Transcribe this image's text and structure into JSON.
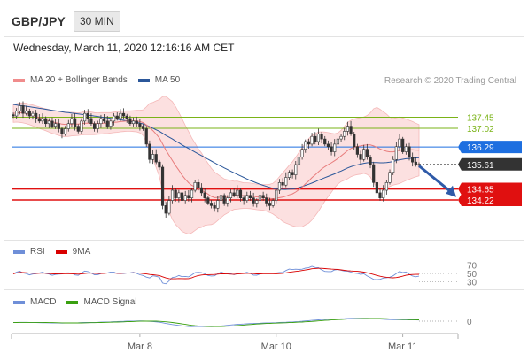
{
  "header": {
    "symbol": "GBP/JPY",
    "timeframe": "30 MIN"
  },
  "datetime": "Wednesday, March 11, 2020 12:16:16 AM CET",
  "legend": [
    {
      "label": "MA 20 + Bollinger Bands",
      "color": "#f08c8c"
    },
    {
      "label": "MA 50",
      "color": "#2b579a"
    }
  ],
  "credit": "Research © 2020 Trading Central",
  "rsi_legend": [
    {
      "label": "RSI",
      "color": "#6f8fd8"
    },
    {
      "label": "9MA",
      "color": "#d90000"
    }
  ],
  "macd_legend": [
    {
      "label": "MACD",
      "color": "#6f8fd8"
    },
    {
      "label": "MACD Signal",
      "color": "#3aa010"
    }
  ],
  "chart_data": {
    "type": "candlestick",
    "price_ylim": [
      132.7,
      138.4
    ],
    "levels": [
      {
        "value": 137.45,
        "label": "137.45",
        "kind": "resistance",
        "color": "#7ab317"
      },
      {
        "value": 137.02,
        "label": "137.02",
        "kind": "resistance",
        "color": "#7ab317"
      },
      {
        "value": 136.29,
        "label": "136.29",
        "kind": "pivot",
        "color": "#1e6fe0"
      },
      {
        "value": 135.61,
        "label": "135.61",
        "kind": "last",
        "color": "#333333"
      },
      {
        "value": 134.65,
        "label": "134.65",
        "kind": "target",
        "color": "#e01010"
      },
      {
        "value": 134.22,
        "label": "134.22",
        "kind": "target",
        "color": "#e01010"
      }
    ],
    "x_ticks": [
      {
        "label": "Mar 8",
        "index": 39
      },
      {
        "label": "Mar 10",
        "index": 81
      },
      {
        "label": "Mar 11",
        "index": 120
      }
    ],
    "closes": [
      137.5,
      137.7,
      137.9,
      137.6,
      137.7,
      137.5,
      137.6,
      137.4,
      137.3,
      137.4,
      137.2,
      137.3,
      137.1,
      137.2,
      137.0,
      136.8,
      137.0,
      137.2,
      137.4,
      137.1,
      136.9,
      137.3,
      137.6,
      137.4,
      137.2,
      137.0,
      137.2,
      137.4,
      137.3,
      137.1,
      137.3,
      137.5,
      137.4,
      137.6,
      137.5,
      137.4,
      137.2,
      137.3,
      137.2,
      137.1,
      137.0,
      136.4,
      135.8,
      136.0,
      135.7,
      135.5,
      134.0,
      133.7,
      134.2,
      134.6,
      134.3,
      134.5,
      134.2,
      134.4,
      134.3,
      134.6,
      134.9,
      134.7,
      134.5,
      134.3,
      134.1,
      134.0,
      133.9,
      134.2,
      134.4,
      134.1,
      134.3,
      134.5,
      134.4,
      134.6,
      134.3,
      134.2,
      134.4,
      134.3,
      134.1,
      134.2,
      134.4,
      134.3,
      134.1,
      134.0,
      134.2,
      134.6,
      134.9,
      134.8,
      135.1,
      135.3,
      135.2,
      135.6,
      135.9,
      136.2,
      136.5,
      136.4,
      136.7,
      136.5,
      136.8,
      136.6,
      136.4,
      136.3,
      136.1,
      136.4,
      136.6,
      136.7,
      136.9,
      137.1,
      136.8,
      136.3,
      136.0,
      135.8,
      136.2,
      135.9,
      135.6,
      134.9,
      134.5,
      134.3,
      134.6,
      134.9,
      135.3,
      135.8,
      136.3,
      136.6,
      136.1,
      136.3,
      135.9,
      135.7,
      135.6,
      135.61
    ],
    "ma20": [
      137.6,
      137.62,
      137.63,
      137.62,
      137.6,
      137.56,
      137.52,
      137.48,
      137.43,
      137.39,
      137.35,
      137.31,
      137.27,
      137.24,
      137.21,
      137.18,
      137.17,
      137.17,
      137.18,
      137.18,
      137.18,
      137.2,
      137.22,
      137.22,
      137.21,
      137.2,
      137.2,
      137.21,
      137.22,
      137.22,
      137.23,
      137.25,
      137.26,
      137.28,
      137.29,
      137.3,
      137.3,
      137.3,
      137.3,
      137.28,
      137.24,
      137.15,
      137.04,
      136.93,
      136.79,
      136.64,
      136.41,
      136.17,
      135.96,
      135.76,
      135.56,
      135.38,
      135.19,
      135.03,
      134.89,
      134.79,
      134.73,
      134.67,
      134.6,
      134.53,
      134.45,
      134.36,
      134.31,
      134.32,
      134.33,
      134.34,
      134.36,
      134.39,
      134.4,
      134.41,
      134.4,
      134.39,
      134.39,
      134.38,
      134.36,
      134.34,
      134.33,
      134.32,
      134.3,
      134.28,
      134.27,
      134.28,
      134.31,
      134.33,
      134.37,
      134.42,
      134.46,
      134.53,
      134.62,
      134.72,
      134.85,
      134.96,
      135.09,
      135.2,
      135.32,
      135.43,
      135.52,
      135.6,
      135.67,
      135.75,
      135.84,
      135.94,
      136.04,
      136.15,
      136.23,
      136.28,
      136.31,
      136.33,
      136.36,
      136.37,
      136.37,
      136.33,
      136.28,
      136.21,
      136.16,
      136.12,
      136.1,
      136.1,
      136.13,
      136.16,
      136.17,
      136.18,
      136.18,
      136.18,
      136.17,
      136.16
    ],
    "ma50": [
      137.95,
      137.93,
      137.91,
      137.9,
      137.88,
      137.86,
      137.84,
      137.82,
      137.8,
      137.78,
      137.76,
      137.74,
      137.72,
      137.7,
      137.68,
      137.66,
      137.64,
      137.63,
      137.61,
      137.6,
      137.58,
      137.56,
      137.55,
      137.53,
      137.52,
      137.5,
      137.48,
      137.46,
      137.44,
      137.43,
      137.41,
      137.39,
      137.37,
      137.35,
      137.33,
      137.31,
      137.29,
      137.27,
      137.25,
      137.22,
      137.19,
      137.14,
      137.08,
      137.02,
      136.96,
      136.9,
      136.82,
      136.74,
      136.67,
      136.6,
      136.52,
      136.45,
      136.37,
      136.3,
      136.23,
      136.16,
      136.09,
      136.02,
      135.95,
      135.88,
      135.81,
      135.74,
      135.67,
      135.6,
      135.54,
      135.47,
      135.41,
      135.34,
      135.28,
      135.22,
      135.16,
      135.1,
      135.04,
      134.98,
      134.93,
      134.88,
      134.83,
      134.79,
      134.75,
      134.71,
      134.67,
      134.65,
      134.64,
      134.63,
      134.63,
      134.64,
      134.65,
      134.67,
      134.7,
      134.74,
      134.79,
      134.83,
      134.88,
      134.93,
      134.99,
      135.04,
      135.09,
      135.14,
      135.19,
      135.24,
      135.3,
      135.35,
      135.41,
      135.47,
      135.52,
      135.56,
      135.59,
      135.62,
      135.65,
      135.67,
      135.68,
      135.68,
      135.68,
      135.67,
      135.67,
      135.68,
      135.7,
      135.72,
      135.76,
      135.79,
      135.81,
      135.83,
      135.84,
      135.85,
      135.86,
      135.87
    ],
    "bb_width": [
      0.35,
      0.36,
      0.38,
      0.39,
      0.4,
      0.4,
      0.41,
      0.41,
      0.42,
      0.42,
      0.43,
      0.44,
      0.45,
      0.46,
      0.47,
      0.48,
      0.48,
      0.47,
      0.46,
      0.45,
      0.44,
      0.44,
      0.45,
      0.45,
      0.44,
      0.43,
      0.42,
      0.42,
      0.41,
      0.41,
      0.4,
      0.4,
      0.4,
      0.4,
      0.4,
      0.4,
      0.4,
      0.41,
      0.42,
      0.44,
      0.5,
      0.7,
      0.95,
      1.1,
      1.3,
      1.5,
      1.85,
      2.1,
      2.2,
      2.3,
      2.3,
      2.25,
      2.2,
      2.1,
      2.0,
      1.85,
      1.7,
      1.55,
      1.45,
      1.3,
      1.2,
      1.1,
      1.0,
      0.9,
      0.8,
      0.7,
      0.65,
      0.6,
      0.55,
      0.55,
      0.52,
      0.5,
      0.5,
      0.5,
      0.5,
      0.5,
      0.5,
      0.5,
      0.52,
      0.55,
      0.6,
      0.7,
      0.82,
      0.95,
      1.05,
      1.15,
      1.25,
      1.35,
      1.45,
      1.55,
      1.6,
      1.65,
      1.65,
      1.6,
      1.55,
      1.45,
      1.35,
      1.25,
      1.15,
      1.05,
      1.0,
      1.0,
      1.05,
      1.1,
      1.1,
      1.1,
      1.1,
      1.1,
      1.1,
      1.15,
      1.25,
      1.45,
      1.55,
      1.55,
      1.5,
      1.45,
      1.35,
      1.3,
      1.3,
      1.3,
      1.25,
      1.2,
      1.15,
      1.1,
      1.05,
      1.0
    ],
    "rsi_ticks": [
      30,
      50,
      70
    ],
    "macd_ticks": [
      0
    ],
    "arrow": {
      "from": 135.55,
      "to": 134.4,
      "direction": "down"
    }
  }
}
